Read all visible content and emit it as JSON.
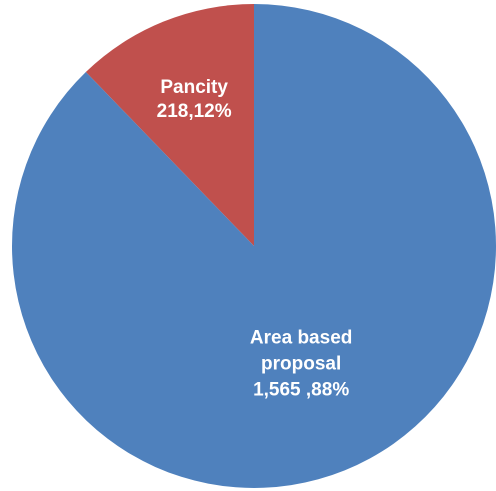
{
  "chart_data": {
    "type": "pie",
    "title": "",
    "slices": [
      {
        "name": "Pancity",
        "value": 218,
        "percent": 12,
        "color": "#C0504D",
        "label_lines": [
          "Pancity",
          "218,12%"
        ]
      },
      {
        "name": "Area based proposal",
        "value": 1565,
        "percent": 88,
        "color": "#4F81BD",
        "label_lines": [
          "Area based",
          "proposal",
          "1,565 ,88%"
        ]
      }
    ],
    "start": "top",
    "direction": "counterclockwise-first-slice",
    "legend": "none"
  }
}
